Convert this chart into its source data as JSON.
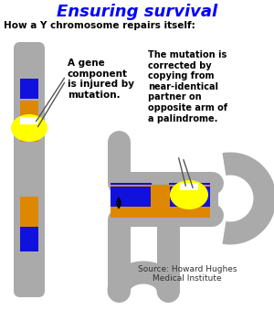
{
  "title": "Ensuring survival",
  "subtitle": "How a Y chromosome repairs itself:",
  "title_color": "#0000ff",
  "subtitle_color": "#000000",
  "bg_color": "#ffffff",
  "chr_color": "#aaaaaa",
  "blue_color": "#1111dd",
  "orange_color": "#dd8800",
  "yellow_color": "#ffff00",
  "white_color": "#ffffff",
  "annotation1": "A gene\ncomponent\nis injured by\nmutation.",
  "annotation2": "The mutation is\ncorrected by\ncopying from\nnear-identical\npartner on\nopposite arm of\na palindrome.",
  "source_text": "Source: Howard Hughes\nMedical Institute"
}
